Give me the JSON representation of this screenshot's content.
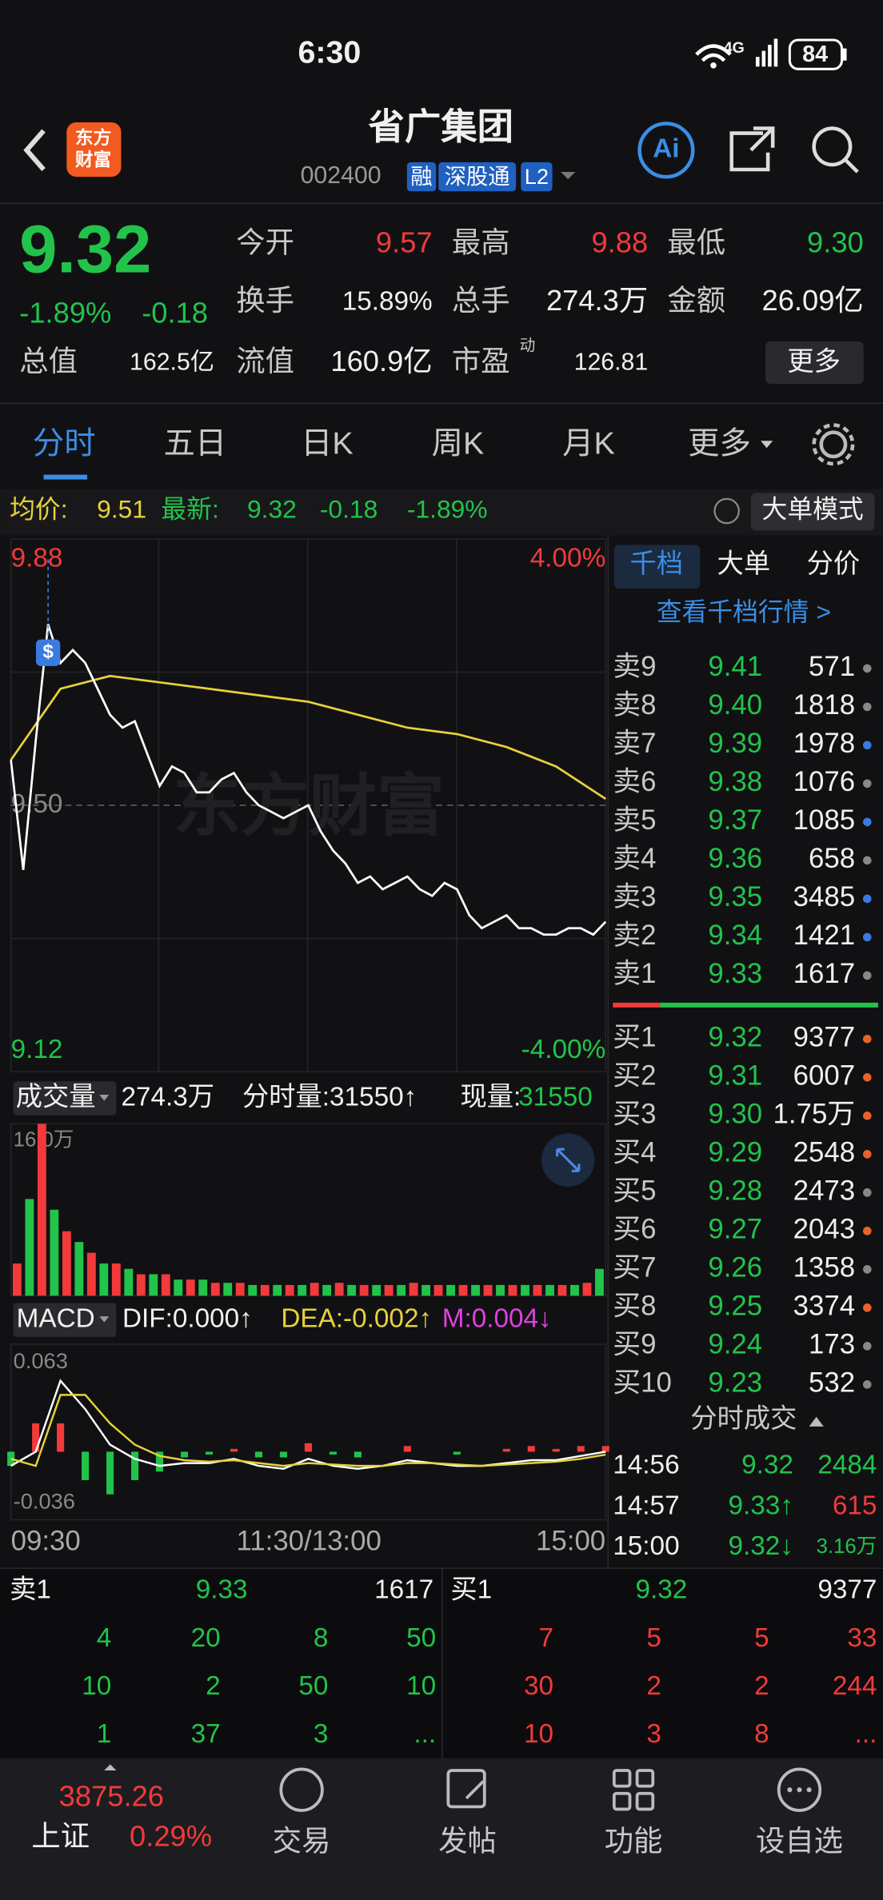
{
  "status": {
    "time": "6:30",
    "network": "4G",
    "battery": "84"
  },
  "header": {
    "logo": [
      "东方",
      "财富"
    ],
    "title": "省广集团",
    "code": "002400",
    "badges": [
      "融",
      "深股通",
      "L2"
    ],
    "ai": "Ai"
  },
  "quote": {
    "price": "9.32",
    "change_pct": "-1.89%",
    "change": "-0.18",
    "fields": [
      {
        "label": "今开",
        "value": "9.57"
      },
      {
        "label": "最高",
        "value": "9.88"
      },
      {
        "label": "最低",
        "value": "9.30"
      },
      {
        "label": "换手",
        "value": "15.89%"
      },
      {
        "label": "总手",
        "value": "274.3万"
      },
      {
        "label": "金额",
        "value": "26.09亿"
      },
      {
        "label": "总值",
        "value": "162.5亿"
      },
      {
        "label": "流值",
        "value": "160.9亿"
      },
      {
        "label": "市盈",
        "value": "126.81",
        "sup": "动"
      }
    ],
    "more": "更多"
  },
  "tabs": [
    "分时",
    "五日",
    "日K",
    "周K",
    "月K",
    "更多"
  ],
  "info": {
    "avg_label": "均价:",
    "avg": "9.51",
    "last_label": "最新:",
    "last": "9.32",
    "change": "-0.18",
    "change_pct": "-1.89%",
    "mode_button": "大单模式"
  },
  "chart": {
    "ylim": [
      9.12,
      9.88
    ],
    "yticks": [
      9.88,
      {
        "value": 9.5,
        "label": "9.50"
      },
      9.12
    ],
    "pct_top": "4.00%",
    "pct_bottom": "-4.00%",
    "watermark": "东方财富",
    "marker": "$",
    "price_line": {
      "color": "#ffffff",
      "values": [
        9.57,
        9.4,
        9.6,
        9.78,
        9.72,
        9.74,
        9.72,
        9.68,
        9.64,
        9.62,
        9.63,
        9.58,
        9.53,
        9.56,
        9.55,
        9.52,
        9.52,
        9.54,
        9.55,
        9.52,
        9.5,
        9.49,
        9.48,
        9.49,
        9.5,
        9.46,
        9.43,
        9.41,
        9.38,
        9.39,
        9.37,
        9.38,
        9.39,
        9.37,
        9.36,
        9.38,
        9.37,
        9.33,
        9.31,
        9.32,
        9.33,
        9.31,
        9.31,
        9.3,
        9.3,
        9.31,
        9.31,
        9.3,
        9.32
      ]
    },
    "avg_line": {
      "color": "#e6d23a",
      "values": [
        9.57,
        9.68,
        9.7,
        9.69,
        9.68,
        9.67,
        9.66,
        9.64,
        9.62,
        9.61,
        9.59,
        9.56,
        9.51
      ]
    },
    "time_labels": [
      "09:30",
      "11:30/13:00",
      "15:00"
    ]
  },
  "volume": {
    "label": "成交量",
    "total": "274.3万",
    "minute_volume": "分时量:31550↑",
    "current_label": "现量:",
    "current": "31550",
    "ylim": [
      0,
      16
    ],
    "yticks": [
      {
        "value": 16,
        "label": "16.0万"
      }
    ],
    "values": [
      3,
      9,
      16,
      8,
      6,
      5,
      4,
      3,
      3,
      2.5,
      2,
      2,
      2,
      1.5,
      1.5,
      1.5,
      1.2,
      1.2,
      1.2,
      1,
      1,
      1,
      1,
      1,
      1.2,
      1,
      1.2,
      1,
      1,
      1,
      1,
      1,
      1.2,
      1,
      1,
      1,
      1,
      1,
      1,
      1,
      1,
      1,
      1,
      1,
      1,
      1,
      1.2,
      2.5
    ]
  },
  "macd": {
    "label": "MACD",
    "dif_label": "DIF:0.000↑",
    "dea_label": "DEA:-0.002↑",
    "m_label": "M:0.004↓",
    "ylim": [
      -0.036,
      0.063
    ],
    "yticks": [
      0.063,
      -0.036
    ],
    "dif": {
      "color": "#ffffff",
      "values": [
        -0.01,
        0.0,
        0.05,
        0.03,
        0.005,
        -0.005,
        -0.01,
        -0.008,
        -0.008,
        -0.005,
        -0.01,
        -0.012,
        -0.005,
        -0.01,
        -0.012,
        -0.01,
        -0.006,
        -0.008,
        -0.01,
        -0.01,
        -0.008,
        -0.006,
        -0.006,
        -0.003,
        0.0
      ]
    },
    "dea": {
      "color": "#e6d23a",
      "values": [
        -0.005,
        -0.01,
        0.04,
        0.04,
        0.02,
        0.005,
        -0.003,
        -0.006,
        -0.007,
        -0.006,
        -0.008,
        -0.01,
        -0.008,
        -0.009,
        -0.01,
        -0.01,
        -0.008,
        -0.008,
        -0.009,
        -0.01,
        -0.009,
        -0.008,
        -0.007,
        -0.005,
        -0.002
      ]
    },
    "m": {
      "values": [
        -0.01,
        0.02,
        0.02,
        -0.02,
        -0.03,
        -0.02,
        -0.014,
        -0.004,
        -0.002,
        0.002,
        -0.004,
        -0.004,
        0.006,
        -0.002,
        -0.004,
        0,
        0.004,
        0,
        -0.002,
        0,
        0.002,
        0.004,
        0.002,
        0.004,
        0.004
      ]
    }
  },
  "book": {
    "tabs": [
      "千档",
      "大单",
      "分价"
    ],
    "link": "查看千档行情 >",
    "asks": [
      {
        "label": "卖9",
        "price": "9.41",
        "volume": "571",
        "dot": "#888888"
      },
      {
        "label": "卖8",
        "price": "9.40",
        "volume": "1818",
        "dot": "#888888"
      },
      {
        "label": "卖7",
        "price": "9.39",
        "volume": "1978",
        "dot": "#3a7be0"
      },
      {
        "label": "卖6",
        "price": "9.38",
        "volume": "1076",
        "dot": "#888888"
      },
      {
        "label": "卖5",
        "price": "9.37",
        "volume": "1085",
        "dot": "#3a7be0"
      },
      {
        "label": "卖4",
        "price": "9.36",
        "volume": "658",
        "dot": "#888888"
      },
      {
        "label": "卖3",
        "price": "9.35",
        "volume": "3485",
        "dot": "#3a7be0"
      },
      {
        "label": "卖2",
        "price": "9.34",
        "volume": "1421",
        "dot": "#3a7be0"
      },
      {
        "label": "卖1",
        "price": "9.33",
        "volume": "1617",
        "dot": "#888888"
      }
    ],
    "bids": [
      {
        "label": "买1",
        "price": "9.32",
        "volume": "9377",
        "dot": "#e8632a"
      },
      {
        "label": "买2",
        "price": "9.31",
        "volume": "6007",
        "dot": "#e8632a"
      },
      {
        "label": "买3",
        "price": "9.30",
        "volume": "1.75万",
        "dot": "#e8632a"
      },
      {
        "label": "买4",
        "price": "9.29",
        "volume": "2548",
        "dot": "#e8632a"
      },
      {
        "label": "买5",
        "price": "9.28",
        "volume": "2473",
        "dot": "#888888"
      },
      {
        "label": "买6",
        "price": "9.27",
        "volume": "2043",
        "dot": "#e8632a"
      },
      {
        "label": "买7",
        "price": "9.26",
        "volume": "1358",
        "dot": "#888888"
      },
      {
        "label": "买8",
        "price": "9.25",
        "volume": "3374",
        "dot": "#e8632a"
      },
      {
        "label": "买9",
        "price": "9.24",
        "volume": "173",
        "dot": "#888888"
      },
      {
        "label": "买10",
        "price": "9.23",
        "volume": "532",
        "dot": "#888888"
      }
    ]
  },
  "trades": {
    "title": "分时成交",
    "rows": [
      {
        "time": "14:56",
        "price": "9.32",
        "volume": "2484",
        "vcolor": "#22c34a"
      },
      {
        "time": "14:57",
        "price": "9.33↑",
        "volume": "615",
        "vcolor": "#f23a3a"
      },
      {
        "time": "15:00",
        "price": "9.32↓",
        "volume": "3.16万",
        "vcolor": "#22c34a"
      }
    ]
  },
  "queue": {
    "sell": {
      "label": "卖1",
      "price": "9.33",
      "volume": "1617",
      "grid": [
        [
          "4",
          "20",
          "8",
          "50"
        ],
        [
          "10",
          "2",
          "50",
          "10"
        ],
        [
          "1",
          "37",
          "3",
          "..."
        ]
      ]
    },
    "buy": {
      "label": "买1",
      "price": "9.32",
      "volume": "9377",
      "grid": [
        [
          "7",
          "5",
          "5",
          "33"
        ],
        [
          "30",
          "2",
          "2",
          "244"
        ],
        [
          "10",
          "3",
          "8",
          "..."
        ]
      ]
    }
  },
  "nav": {
    "index_value": "3875.26",
    "index_name": "上证",
    "index_change": "0.29%",
    "items": [
      "交易",
      "发帖",
      "功能",
      "设自选"
    ]
  }
}
